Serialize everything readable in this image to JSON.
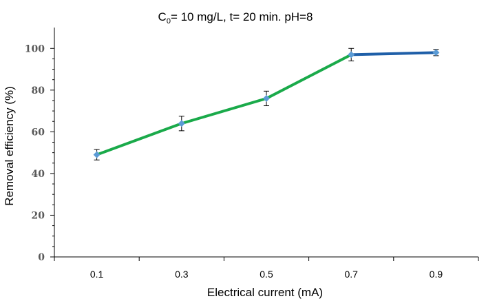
{
  "chart_data": {
    "type": "line",
    "title_main": "C",
    "title_sub": "0",
    "title_rest": "= 10 mg/L, t= 20 min. pH=8",
    "xlabel": "Electrical current (mA)",
    "ylabel": "Removal efficiency (%)",
    "categories": [
      "0.1",
      "0.3",
      "0.5",
      "0.7",
      "0.9"
    ],
    "yticks": [
      "0",
      "20",
      "40",
      "60",
      "80",
      "100"
    ],
    "ylim": [
      0,
      110
    ],
    "series": [
      {
        "values": [
          49,
          64,
          76,
          97,
          98
        ],
        "errors": [
          2.5,
          3.5,
          3.5,
          3,
          1.5
        ]
      }
    ],
    "colors": {
      "line_main": "#1aaa4a",
      "line_last": "#1f5fa8",
      "marker": "#5b9bd5",
      "error_bar": "#000000",
      "axis": "#000000"
    }
  }
}
